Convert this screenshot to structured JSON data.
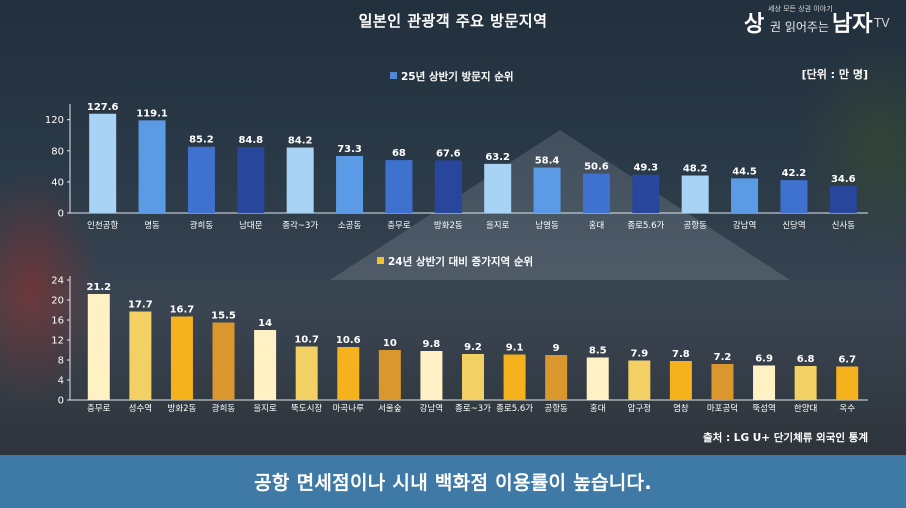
{
  "title": "일본인 관광객 주요 방문지역",
  "logo": {
    "mark": "상",
    "slogan": "세상 모든 상권 이야기",
    "sub": "권 읽어주는",
    "name": "남자",
    "tv": "TV"
  },
  "unit_label": "[단위 : 만 명]",
  "source": "출처 : LG U+ 단기체류 외국인 통계",
  "caption": "공항 면세점이나 시내 백화점 이용률이 높습니다.",
  "chart_data": [
    {
      "type": "bar",
      "legend": "25년 상반기 방문지 순위",
      "legend_color": "#4f86d6",
      "categories": [
        "인천공항",
        "명동",
        "광희동",
        "남대문",
        "종각~3가",
        "소공동",
        "충무로",
        "방화2동",
        "을지로",
        "남영동",
        "홍대",
        "종로5.6가",
        "공항동",
        "강남역",
        "신당역",
        "신사동"
      ],
      "values": [
        127.6,
        119.1,
        85.2,
        84.8,
        84.2,
        73.3,
        68,
        67.6,
        63.2,
        58.4,
        50.6,
        49.3,
        48.2,
        44.5,
        42.2,
        34.6
      ],
      "value_labels": [
        "127.6",
        "119.1",
        "85.2",
        "84.8",
        "84.2",
        "73.3",
        "68",
        "67.6",
        "63.2",
        "58.4",
        "50.6",
        "49.3",
        "48.2",
        "44.5",
        "42.2",
        "34.6"
      ],
      "bar_colors": [
        "#a9d3f5",
        "#5b9be6",
        "#3f72cf",
        "#27469c",
        "#a9d3f5",
        "#5b9be6",
        "#3f72cf",
        "#27469c",
        "#a9d3f5",
        "#5b9be6",
        "#3f72cf",
        "#27469c",
        "#a9d3f5",
        "#5b9be6",
        "#3f72cf",
        "#27469c"
      ],
      "yticks": [
        "0",
        "40",
        "80",
        "120"
      ],
      "ylim": [
        0,
        135
      ],
      "grid": false
    },
    {
      "type": "bar",
      "legend": "24년 상반기 대비 증가지역 순위",
      "legend_color": "#f2c230",
      "categories": [
        "충무로",
        "성수역",
        "방화2동",
        "광희동",
        "을지로",
        "뚝도시장",
        "마곡나루",
        "서울숲",
        "강남역",
        "종로~3가",
        "종로5.6가",
        "공항동",
        "홍대",
        "압구정",
        "염창",
        "마포공덕",
        "뚝섬역",
        "한양대",
        "옥수"
      ],
      "values": [
        21.2,
        17.7,
        16.7,
        15.5,
        14,
        10.7,
        10.6,
        10,
        9.8,
        9.2,
        9.1,
        9,
        8.5,
        7.9,
        7.8,
        7.2,
        6.9,
        6.8,
        6.7
      ],
      "value_labels": [
        "21.2",
        "17.7",
        "16.7",
        "15.5",
        "14",
        "10.7",
        "10.6",
        "10",
        "9.8",
        "9.2",
        "9.1",
        "9",
        "8.5",
        "7.9",
        "7.8",
        "7.2",
        "6.9",
        "6.8",
        "6.7"
      ],
      "bar_colors": [
        "#fff1c4",
        "#f2d064",
        "#f6b21c",
        "#d9972e",
        "#fff1c4",
        "#f2d064",
        "#f6b21c",
        "#d9972e",
        "#fff1c4",
        "#f2d064",
        "#f6b21c",
        "#d9972e",
        "#fff1c4",
        "#f2d064",
        "#f6b21c",
        "#d9972e",
        "#fff1c4",
        "#f2d064",
        "#f6b21c"
      ],
      "yticks": [
        "0",
        "4",
        "8",
        "12",
        "16",
        "20",
        "24"
      ],
      "ylim": [
        0,
        24
      ],
      "grid": false
    }
  ]
}
